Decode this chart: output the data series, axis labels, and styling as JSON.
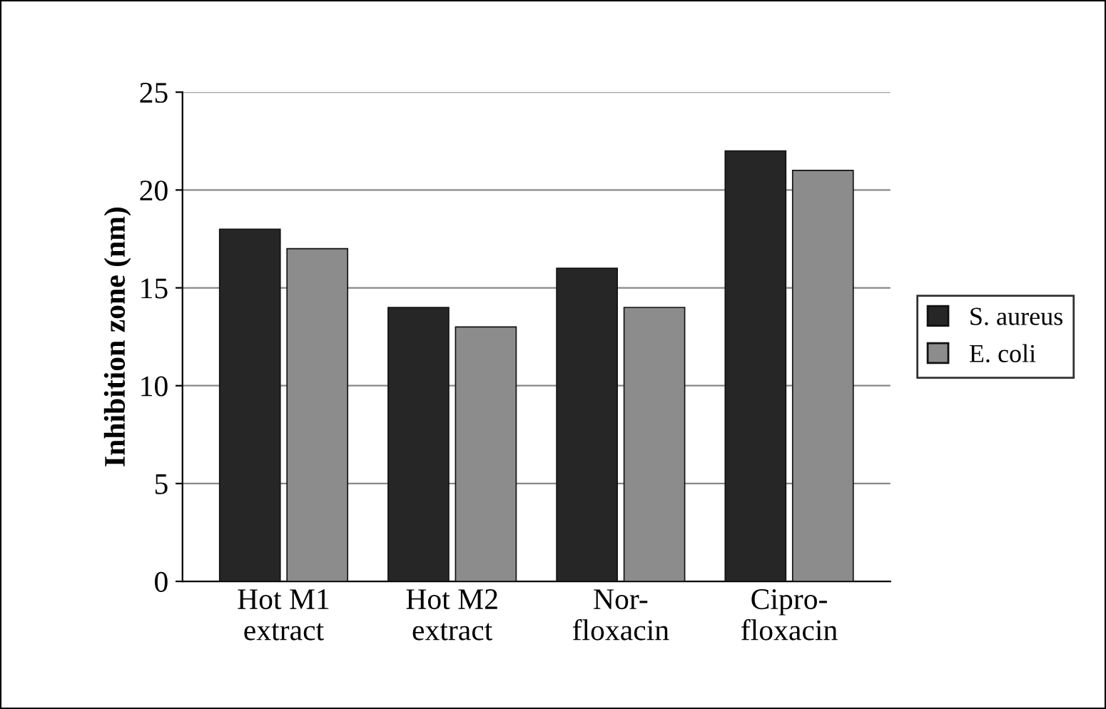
{
  "chart_data": {
    "type": "bar",
    "ylabel": "Inhibition zone (nm)",
    "categories": [
      "Hot M1\nextract",
      "Hot M2\nextract",
      "Nor-\nfloxacin",
      "Cipro-\nfloxacin"
    ],
    "series": [
      {
        "name": "S. aureus",
        "color": "#262626",
        "values": [
          18,
          14,
          16,
          22
        ]
      },
      {
        "name": "E. coli",
        "color": "#8c8c8c",
        "values": [
          17,
          13,
          14,
          21
        ]
      }
    ],
    "ylim": [
      0,
      25
    ],
    "yticks": [
      0,
      5,
      10,
      15,
      20,
      25
    ],
    "grid": "y",
    "legend": "right"
  }
}
